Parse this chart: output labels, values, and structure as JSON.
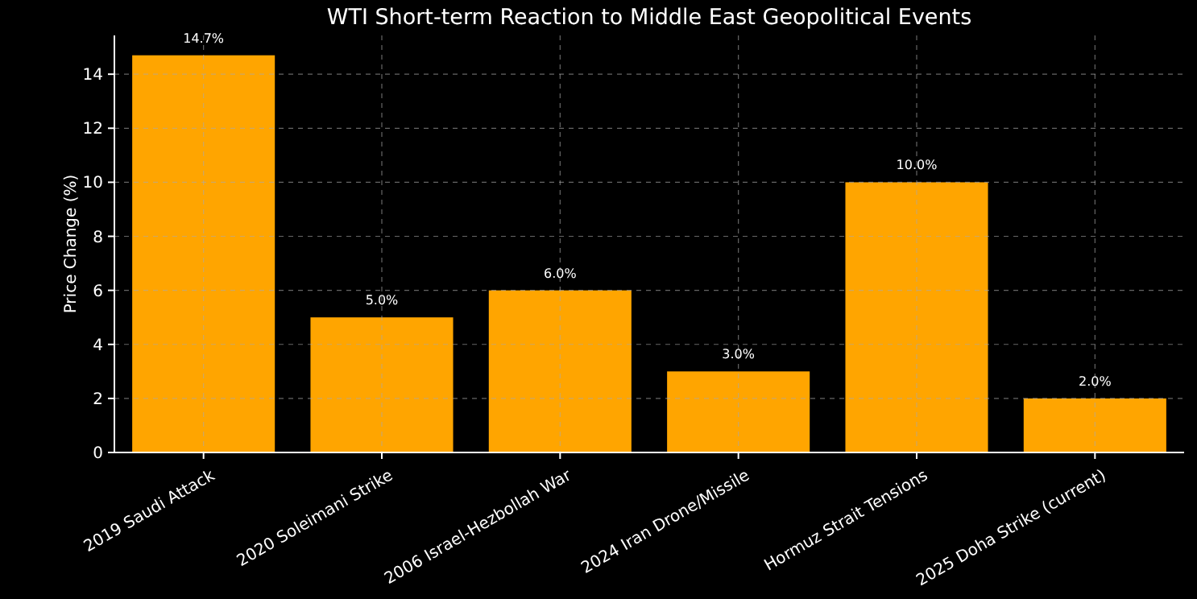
{
  "chart_data": {
    "type": "bar",
    "title": "WTI Short-term Reaction to Middle East Geopolitical Events",
    "ylabel": "Price Change (%)",
    "categories": [
      "2019 Saudi Attack",
      "2020 Soleimani Strike",
      "2006 Israel-Hezbollah War",
      "2024 Iran Drone/Missile",
      "Hormuz Strait Tensions",
      "2025 Doha Strike (current)"
    ],
    "values": [
      14.7,
      5.0,
      6.0,
      3.0,
      10.0,
      2.0
    ],
    "value_labels": [
      "14.7%",
      "5.0%",
      "6.0%",
      "3.0%",
      "10.0%",
      "2.0%"
    ],
    "color": "#ffa500",
    "ylim": [
      0,
      15.435
    ],
    "yticks": [
      0,
      2,
      4,
      6,
      8,
      10,
      12,
      14
    ],
    "grid": true
  }
}
